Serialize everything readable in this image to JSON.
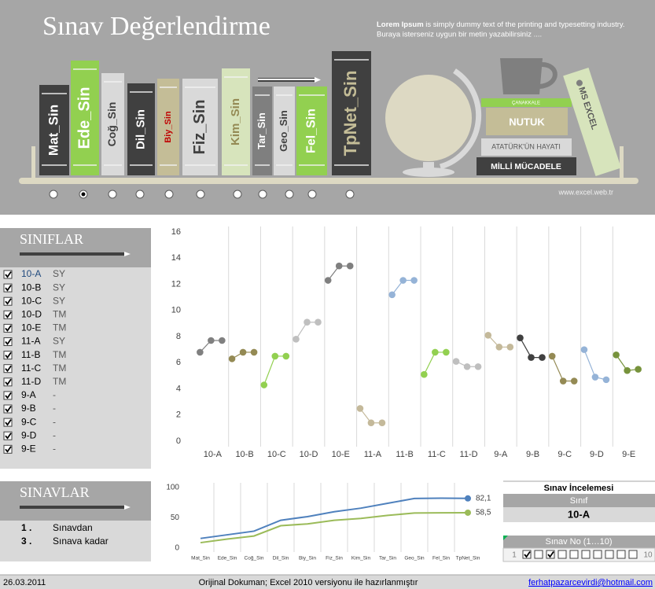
{
  "header": {
    "title": "Sınav Değerlendirme",
    "intro_bold": "Lorem Ipsum",
    "intro_rest": " is simply dummy text of the printing and typesetting industry.",
    "intro_line2": "Buraya isterseniz uygun bir metin yazabilirsiniz ....",
    "books": [
      "Mat_Sin",
      "Ede_Sin",
      "Coğ_Sin",
      "Dil_Sin",
      "Biy_Sin",
      "Fiz_Sin",
      "Kim_Sin",
      "Tar_Sin",
      "Geo_Sin",
      "Fel_Sin",
      "TpNet_Sin"
    ],
    "selected_book": 1,
    "decor": {
      "canakkale": "ÇANAKKALE",
      "nutuk": "NUTUK",
      "ataturk": "ATATÜRK'ÜN HAYATI",
      "milli": "MİLLİ MÜCADELE",
      "excel": "MS EXCEL",
      "site": "www.excel.web.tr"
    }
  },
  "classes": {
    "title": "SINIFLAR",
    "rows": [
      {
        "name": "10-A",
        "type": "SY",
        "checked": true
      },
      {
        "name": "10-B",
        "type": "SY",
        "checked": true
      },
      {
        "name": "10-C",
        "type": "SY",
        "checked": true
      },
      {
        "name": "10-D",
        "type": "TM",
        "checked": true
      },
      {
        "name": "10-E",
        "type": "TM",
        "checked": true
      },
      {
        "name": "11-A",
        "type": "SY",
        "checked": true
      },
      {
        "name": "11-B",
        "type": "TM",
        "checked": true
      },
      {
        "name": "11-C",
        "type": "TM",
        "checked": true
      },
      {
        "name": "11-D",
        "type": "TM",
        "checked": true
      },
      {
        "name": "9-A",
        "type": "-",
        "checked": true
      },
      {
        "name": "9-B",
        "type": "-",
        "checked": true
      },
      {
        "name": "9-C",
        "type": "-",
        "checked": true
      },
      {
        "name": "9-D",
        "type": "-",
        "checked": true
      },
      {
        "name": "9-E",
        "type": "-",
        "checked": true
      }
    ]
  },
  "exams": {
    "title": "SINAVLAR",
    "rows": [
      {
        "number": "1 .",
        "label": "Sınavdan"
      },
      {
        "number": "3 .",
        "label": "Sınava kadar"
      }
    ]
  },
  "chart_data": [
    {
      "type": "line",
      "categories": [
        "10-A",
        "10-B",
        "10-C",
        "10-D",
        "10-E",
        "11-A",
        "11-B",
        "11-C",
        "11-D",
        "9-A",
        "9-B",
        "9-C",
        "9-D",
        "9-E"
      ],
      "groups": [
        {
          "color": "#808080",
          "values": [
            6.8,
            7.7,
            7.7
          ]
        },
        {
          "color": "#948a54",
          "values": [
            6.3,
            6.8,
            6.8
          ]
        },
        {
          "color": "#92d050",
          "values": [
            4.3,
            6.5,
            6.5
          ]
        },
        {
          "color": "#bfbfbf",
          "values": [
            7.8,
            9.1,
            9.1
          ]
        },
        {
          "color": "#7f7f7f",
          "values": [
            12.3,
            13.4,
            13.4
          ]
        },
        {
          "color": "#c4b99a",
          "values": [
            2.5,
            1.4,
            1.4
          ]
        },
        {
          "color": "#95b3d7",
          "values": [
            11.2,
            12.3,
            12.3
          ]
        },
        {
          "color": "#92d050",
          "values": [
            5.1,
            6.8,
            6.8
          ]
        },
        {
          "color": "#bfbfbf",
          "values": [
            6.1,
            5.7,
            5.7
          ]
        },
        {
          "color": "#c4b99a",
          "values": [
            8.1,
            7.2,
            7.2
          ]
        },
        {
          "color": "#404040",
          "values": [
            7.9,
            6.4,
            6.4
          ]
        },
        {
          "color": "#948a54",
          "values": [
            6.5,
            4.6,
            4.6
          ]
        },
        {
          "color": "#95b3d7",
          "values": [
            7.0,
            4.9,
            4.7
          ]
        },
        {
          "color": "#77933c",
          "values": [
            6.6,
            5.4,
            5.5
          ]
        }
      ],
      "ylim": [
        0,
        16
      ],
      "yticks": [
        0,
        2,
        4,
        6,
        8,
        10,
        12,
        14,
        16
      ]
    },
    {
      "type": "line",
      "categories": [
        "Mat_Sin",
        "Ede_Sin",
        "Coğ_Sin",
        "Dil_Sin",
        "Biy_Sin",
        "Fiz_Sin",
        "Kim_Sin",
        "Tar_Sin",
        "Geo_Sin",
        "Fel_Sin",
        "TpNet_Sin"
      ],
      "series": [
        {
          "color": "#4f81bd",
          "values": [
            16,
            22,
            28,
            46,
            52,
            60,
            66,
            74,
            82,
            82.5,
            82.1
          ],
          "value_labels": [
            null,
            null,
            null,
            null,
            null,
            null,
            null,
            null,
            null,
            null,
            "82,1"
          ]
        },
        {
          "color": "#9bbb59",
          "values": [
            9,
            15,
            20,
            37,
            40,
            46,
            49,
            54,
            58,
            58.3,
            58.5
          ],
          "value_labels": [
            null,
            null,
            null,
            null,
            null,
            null,
            null,
            null,
            null,
            null,
            "58,5"
          ]
        }
      ],
      "ylim": [
        0,
        100
      ],
      "yticks": [
        0,
        50,
        100
      ]
    }
  ],
  "review": {
    "title": "Sınav İncelemesi",
    "class_label": "Sınıf",
    "class_value": "10-A",
    "exam_label": "Sınav No (1…10)",
    "range_min": "1",
    "range_max": "10",
    "checked": [
      true,
      false,
      true,
      false,
      false,
      false,
      false,
      false,
      false,
      false
    ]
  },
  "footer": {
    "date": "26.03.2011",
    "note": "Orijinal Dokuman; Excel 2010 versiyonu ile hazırlanmıştır",
    "email": "ferhatpazarcevirdi@hotmail.com"
  }
}
